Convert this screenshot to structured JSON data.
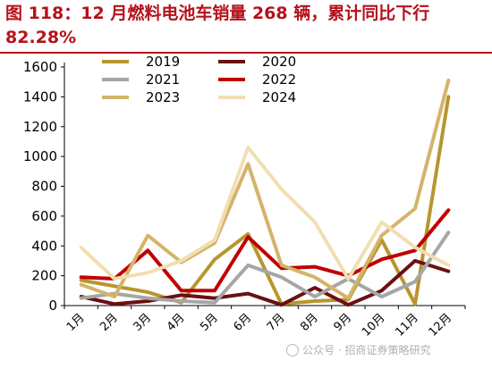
{
  "header": {
    "title": "图 118：12 月燃料电池车销量 268 辆，累计同比下行 82.28%"
  },
  "watermark": {
    "text": "公众号 · 招商证券策略研究"
  },
  "chart_data": {
    "type": "line",
    "categories": [
      "1月",
      "2月",
      "3月",
      "4月",
      "5月",
      "6月",
      "7月",
      "8月",
      "9月",
      "10月",
      "11月",
      "12月"
    ],
    "ylim": [
      0,
      1600
    ],
    "yticks": [
      0,
      200,
      400,
      600,
      800,
      1000,
      1200,
      1400,
      1600
    ],
    "grid": false,
    "legend": "top",
    "series": [
      {
        "name": "2019",
        "color": "#b8962e",
        "values": [
          170,
          130,
          90,
          20,
          310,
          480,
          10,
          30,
          40,
          440,
          10,
          1400
        ]
      },
      {
        "name": "2020",
        "color": "#6b0f12",
        "values": [
          60,
          10,
          30,
          70,
          50,
          80,
          5,
          120,
          5,
          100,
          300,
          230
        ]
      },
      {
        "name": "2021",
        "color": "#a6a6a6",
        "values": [
          50,
          80,
          50,
          30,
          20,
          270,
          190,
          60,
          180,
          60,
          160,
          490
        ]
      },
      {
        "name": "2022",
        "color": "#c00000",
        "values": [
          190,
          180,
          370,
          100,
          100,
          460,
          250,
          260,
          200,
          310,
          370,
          640
        ]
      },
      {
        "name": "2023",
        "color": "#d4b46a",
        "values": [
          140,
          60,
          470,
          290,
          420,
          950,
          270,
          190,
          50,
          470,
          650,
          1510
        ]
      },
      {
        "name": "2024",
        "color": "#f0dfb0",
        "values": [
          390,
          180,
          220,
          300,
          440,
          1060,
          780,
          560,
          180,
          560,
          390,
          270
        ]
      }
    ]
  }
}
